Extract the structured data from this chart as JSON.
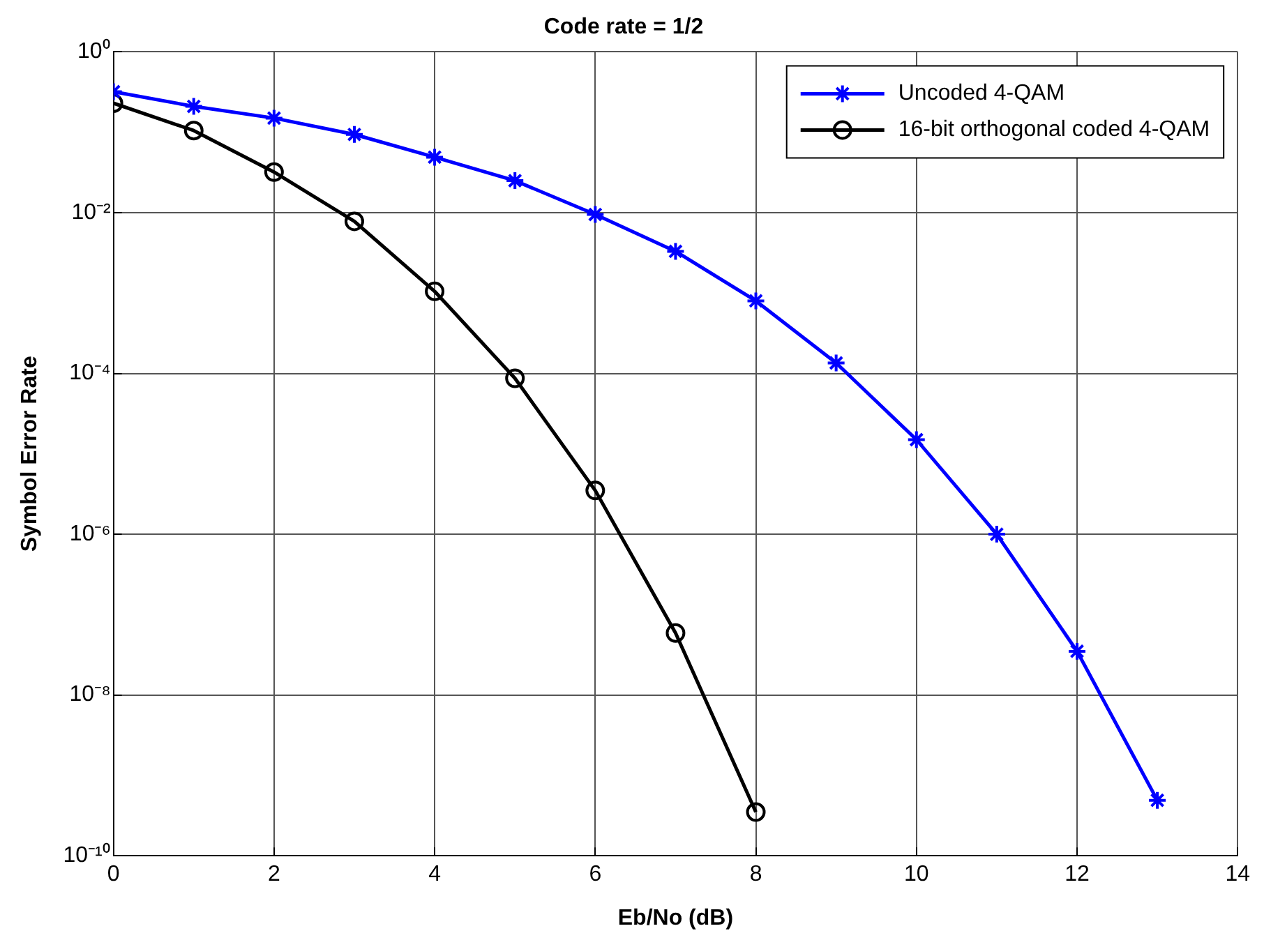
{
  "chart_data": {
    "type": "line",
    "title": "Code rate = 1/2",
    "xlabel": "Eb/No (dB)",
    "ylabel": "Symbol Error Rate",
    "x": [
      0,
      1,
      2,
      3,
      4,
      5,
      6,
      7,
      8,
      9,
      10,
      11,
      12,
      13
    ],
    "series": [
      {
        "name": "Uncoded 4-QAM",
        "color": "#0000ff",
        "marker": "cross",
        "values": [
          0.32,
          0.21,
          0.15,
          0.094,
          0.049,
          0.025,
          0.0095,
          0.0033,
          0.0008,
          0.000135,
          1.5e-05,
          1e-06,
          3.5e-08,
          4.9e-10
        ]
      },
      {
        "name": "16-bit orthogonal coded 4-QAM",
        "color": "#000000",
        "marker": "circle",
        "values": [
          0.23,
          0.105,
          0.032,
          0.0078,
          0.00105,
          8.7e-05,
          3.5e-06,
          5.9e-08,
          3.5e-10,
          null,
          null,
          null,
          null,
          null
        ]
      }
    ],
    "log": "y",
    "xlim": [
      0,
      14
    ],
    "xticks": [
      0,
      2,
      4,
      6,
      8,
      10,
      12,
      14
    ],
    "ylim": [
      1e-10,
      1
    ],
    "yticks": [
      {
        "value": 1e-10,
        "label": "10⁻¹⁰"
      },
      {
        "value": 1e-08,
        "label": "10⁻⁸"
      },
      {
        "value": 1e-06,
        "label": "10⁻⁶"
      },
      {
        "value": 0.0001,
        "label": "10⁻⁴"
      },
      {
        "value": 0.01,
        "label": "10⁻²"
      },
      {
        "value": 1,
        "label": "10⁰"
      }
    ],
    "grid": true,
    "legend": "top right",
    "line_style": "solid"
  }
}
